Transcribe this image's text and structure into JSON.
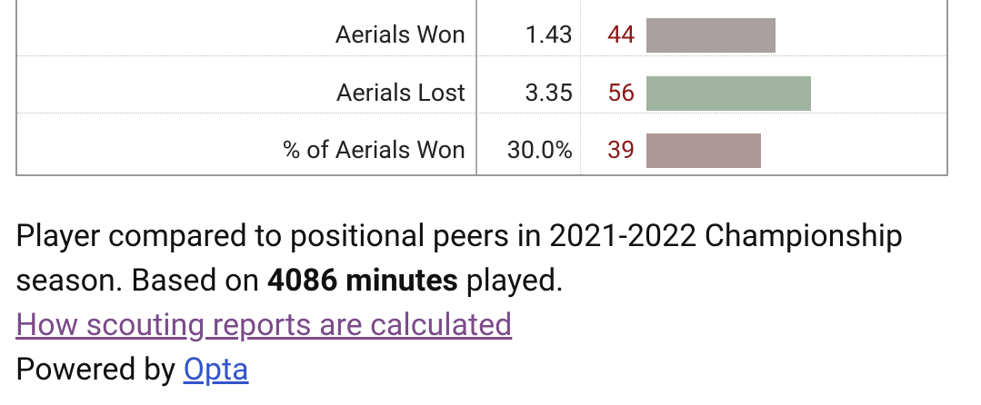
{
  "table": {
    "rows": [
      {
        "stat": "Aerials Won",
        "per90": "1.43",
        "percentile": 44,
        "color": "#a9a0a0"
      },
      {
        "stat": "Aerials Lost",
        "per90": "3.35",
        "percentile": 56,
        "color": "#a0b2a0"
      },
      {
        "stat": "% of Aerials Won",
        "per90": "30.0%",
        "percentile": 39,
        "color": "#ae9696"
      }
    ]
  },
  "footer": {
    "text_before": "Player compared to positional peers in 2021-2022 Championship season. Based on ",
    "bold": "4086 minutes",
    "text_after": " played.",
    "link": "How scouting reports are calculated",
    "powered_by": "Powered by ",
    "powered_link": "Opta"
  }
}
